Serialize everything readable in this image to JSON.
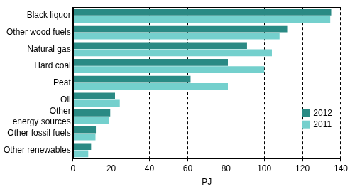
{
  "chart_data": {
    "type": "bar",
    "orientation": "horizontal",
    "categories": [
      "Black liquor",
      "Other wood fuels",
      "Natural gas",
      "Hard coal",
      "Peat",
      "Oil",
      "Other energy sources",
      "Other fossil fuels",
      "Other renewables"
    ],
    "series": [
      {
        "name": "2012",
        "color": "#2a8a84",
        "values": [
          135,
          112,
          91,
          81,
          61.5,
          22,
          19.5,
          12,
          9.5
        ]
      },
      {
        "name": "2011",
        "color": "#74d0cd",
        "values": [
          134.5,
          108,
          104,
          100,
          81,
          24.5,
          19,
          11.8,
          8
        ]
      }
    ],
    "xlabel": "PJ",
    "xlim": [
      0,
      140
    ],
    "xticks": [
      0,
      20,
      40,
      60,
      80,
      100,
      120,
      140
    ],
    "grid": true,
    "legend": "lower right"
  }
}
